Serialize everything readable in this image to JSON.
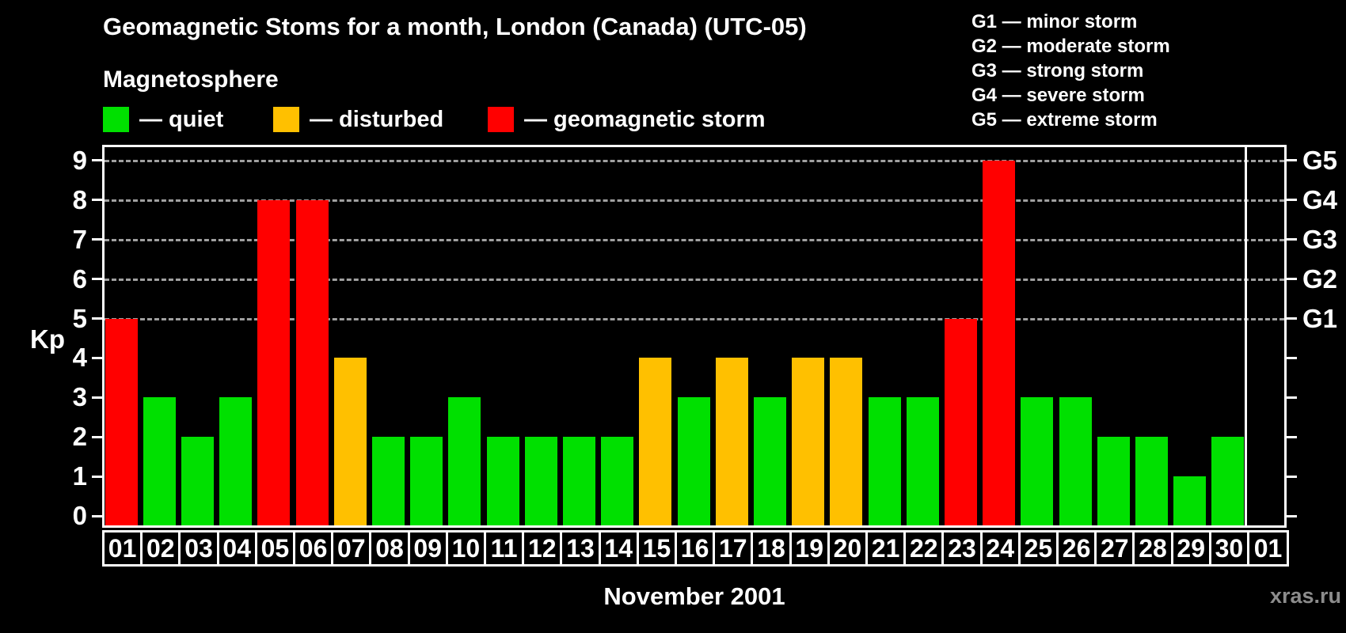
{
  "title": "Geomagnetic Stoms for a month, London (Canada) (UTC-05)",
  "magnetosphere_label": "Magnetosphere",
  "legend": {
    "items": [
      {
        "key": "quiet",
        "label": "— quiet",
        "color": "#00e000"
      },
      {
        "key": "disturbed",
        "label": "— disturbed",
        "color": "#ffc000"
      },
      {
        "key": "storm",
        "label": "— geomagnetic storm",
        "color": "#ff0000"
      }
    ]
  },
  "g_legend": [
    "G1 — minor storm",
    "G2 — moderate storm",
    "G3 — strong storm",
    "G4 — severe storm",
    "G5 — extreme storm"
  ],
  "watermark": "xras.ru",
  "chart_data": {
    "type": "bar",
    "title": "Geomagnetic Stoms for a month, London (Canada) (UTC-05)",
    "xlabel": "November 2001",
    "ylabel": "Kp",
    "ylim": [
      0,
      9
    ],
    "y_ticks": [
      0,
      1,
      2,
      3,
      4,
      5,
      6,
      7,
      8,
      9
    ],
    "gridlines_at": [
      5,
      6,
      7,
      8,
      9
    ],
    "grid_style": "dashed-horizontal",
    "legend_position": "top-left",
    "right_axis": [
      {
        "value": 5,
        "label": "G1"
      },
      {
        "value": 6,
        "label": "G2"
      },
      {
        "value": 7,
        "label": "G3"
      },
      {
        "value": 8,
        "label": "G4"
      },
      {
        "value": 9,
        "label": "G5"
      }
    ],
    "categories": [
      "01",
      "02",
      "03",
      "04",
      "05",
      "06",
      "07",
      "08",
      "09",
      "10",
      "11",
      "12",
      "13",
      "14",
      "15",
      "16",
      "17",
      "18",
      "19",
      "20",
      "21",
      "22",
      "23",
      "24",
      "25",
      "26",
      "27",
      "28",
      "29",
      "30",
      "01"
    ],
    "values": [
      5,
      3,
      2,
      3,
      8,
      8,
      4,
      2,
      2,
      3,
      2,
      2,
      2,
      2,
      4,
      3,
      4,
      3,
      4,
      4,
      3,
      3,
      5,
      9,
      3,
      3,
      2,
      2,
      1,
      2,
      null
    ],
    "status": [
      "storm",
      "quiet",
      "quiet",
      "quiet",
      "storm",
      "storm",
      "disturbed",
      "quiet",
      "quiet",
      "quiet",
      "quiet",
      "quiet",
      "quiet",
      "quiet",
      "disturbed",
      "quiet",
      "disturbed",
      "quiet",
      "disturbed",
      "disturbed",
      "quiet",
      "quiet",
      "storm",
      "storm",
      "quiet",
      "quiet",
      "quiet",
      "quiet",
      "quiet",
      "quiet",
      null
    ],
    "status_colors": {
      "quiet": "#00e000",
      "disturbed": "#ffc000",
      "storm": "#ff0000"
    }
  }
}
